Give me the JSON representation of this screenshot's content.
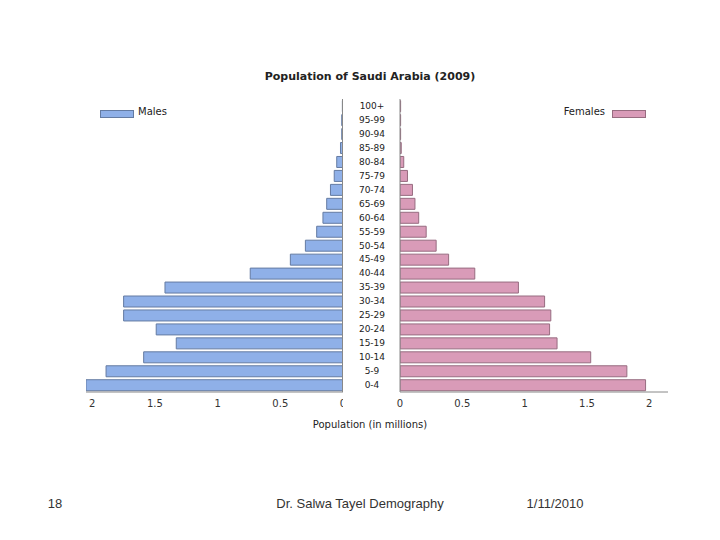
{
  "chart_data": {
    "type": "bar",
    "orientation": "horizontal",
    "title": "Population of Saudi Arabia (2009)",
    "xlabel": "Population (in millions)",
    "legend": "top",
    "categories": [
      "0-4",
      "5-9",
      "10-14",
      "15-19",
      "20-24",
      "25-29",
      "30-34",
      "35-39",
      "40-44",
      "45-49",
      "50-54",
      "55-59",
      "60-64",
      "65-69",
      "70-74",
      "75-79",
      "80-84",
      "85-89",
      "90-94",
      "95-99",
      "100+"
    ],
    "series": [
      {
        "name": "Males",
        "color": "#8fb0e8",
        "xlim": [
          0,
          2.05
        ],
        "xticks": [
          2,
          1.5,
          1,
          0.5,
          0
        ],
        "values": [
          2.05,
          1.89,
          1.59,
          1.33,
          1.49,
          1.75,
          1.75,
          1.42,
          0.74,
          0.42,
          0.3,
          0.21,
          0.16,
          0.13,
          0.1,
          0.07,
          0.05,
          0.02,
          0.01,
          0.01,
          0.005
        ]
      },
      {
        "name": "Females",
        "color": "#d99bb8",
        "xlim": [
          0,
          2.15
        ],
        "xticks": [
          0,
          0.5,
          1,
          1.5,
          2
        ],
        "values": [
          1.97,
          1.82,
          1.53,
          1.26,
          1.2,
          1.21,
          1.16,
          0.95,
          0.6,
          0.39,
          0.29,
          0.21,
          0.15,
          0.12,
          0.1,
          0.06,
          0.03,
          0.01,
          0.005,
          0.005,
          0.005
        ]
      }
    ]
  },
  "footer": {
    "page": 18,
    "author": "Dr. Salwa Tayel Demography",
    "date": "1/11/2010"
  }
}
